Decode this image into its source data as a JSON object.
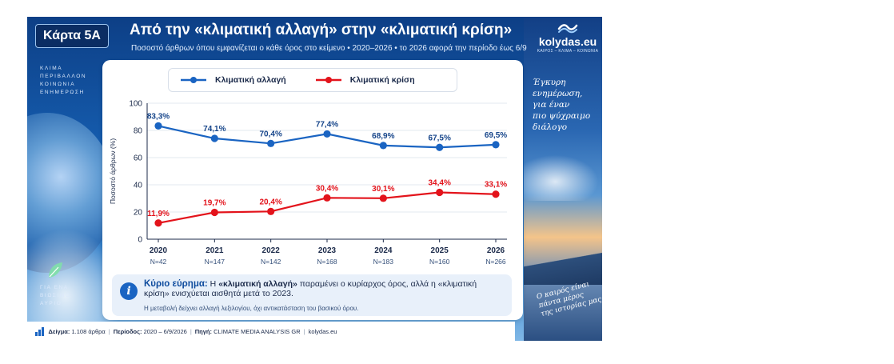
{
  "badge": "Κάρτα 5A",
  "title": "Από την «κλιματική αλλαγή» στην «κλιματική κρίση»",
  "subtitle": "Ποσοστό άρθρων όπου εμφανίζεται ο κάθε όρος στο κείμενο • 2020–2026 • το 2026 αφορά την περίοδο έως 6/9",
  "logo": {
    "name": "kolydas.eu",
    "tagline": "ΚΑΙΡΟΣ – ΚΛΙΜΑ – ΚΟΙΝΩΝΙΑ"
  },
  "left_tagline": [
    "ΚΛΙΜΑ",
    "ΠΕΡΙΒΑΛΛΟΝ",
    "ΚΟΙΝΩΝΙΑ",
    "ΕΝΗΜΕΡΩΣΗ"
  ],
  "left_bottom": [
    "ΓΙΑ ΕΝΑ",
    "ΒΙΩΣΙΜΟ",
    "ΑΥΡΙΟ"
  ],
  "script_top": [
    "Έγκυρη",
    "ενημέρωση,",
    "για έναν",
    "πιο ψύχραιμο",
    "διάλογο"
  ],
  "script_bottom": [
    "Ο καιρός είναι",
    "πάντα μέρος",
    "της ιστορίας μας"
  ],
  "chart_data": {
    "type": "line",
    "categories": [
      "2020",
      "2021",
      "2022",
      "2023",
      "2024",
      "2025",
      "2026"
    ],
    "sample_sizes": [
      "N=42",
      "N=147",
      "N=142",
      "N=168",
      "N=183",
      "N=160",
      "N=266"
    ],
    "ylabel": "Ποσοστό άρθρων (%)",
    "ylim": [
      0,
      100
    ],
    "yticks": [
      0,
      20,
      40,
      60,
      80,
      100
    ],
    "grid": true,
    "legend_position": "top",
    "series": [
      {
        "name": "Κλιματική αλλαγή",
        "color": "#1a64c2",
        "values": [
          83.3,
          74.1,
          70.4,
          77.4,
          68.9,
          67.5,
          69.5
        ],
        "labels": [
          "83,3%",
          "74,1%",
          "70,4%",
          "77,4%",
          "68,9%",
          "67,5%",
          "69,5%"
        ]
      },
      {
        "name": "Κλιματική κρίση",
        "color": "#e3131b",
        "values": [
          11.9,
          19.7,
          20.4,
          30.4,
          30.1,
          34.4,
          33.1
        ],
        "labels": [
          "11,9%",
          "19,7%",
          "20,4%",
          "30,4%",
          "30,1%",
          "34,4%",
          "33,1%"
        ]
      }
    ]
  },
  "finding": {
    "lead": "Κύριο εύρημα:",
    "text_1": " Η ",
    "term_1": "«κλιματική αλλαγή»",
    "text_2": " παραμένει ο κυρίαρχος όρος, αλλά η «κλιματική κρίση» ενισχύεται αισθητά μετά το 2023.",
    "note": "Η μεταβολή δείχνει αλλαγή λεξιλογίου, όχι αντικατάσταση του βασικού όρου."
  },
  "footer": {
    "sample_label": "Δείγμα:",
    "sample_value": "1.108 άρθρα",
    "period_label": "Περίοδος:",
    "period_value": "2020 – 6/9/2026",
    "source_label": "Πηγή:",
    "source_value": "CLIMATE MEDIA ANALYSIS GR",
    "site": "kolydas.eu",
    "separator": "|"
  },
  "colors": {
    "accent_blue": "#1a64c2",
    "accent_red": "#e3131b",
    "navy": "#0b2d63"
  }
}
